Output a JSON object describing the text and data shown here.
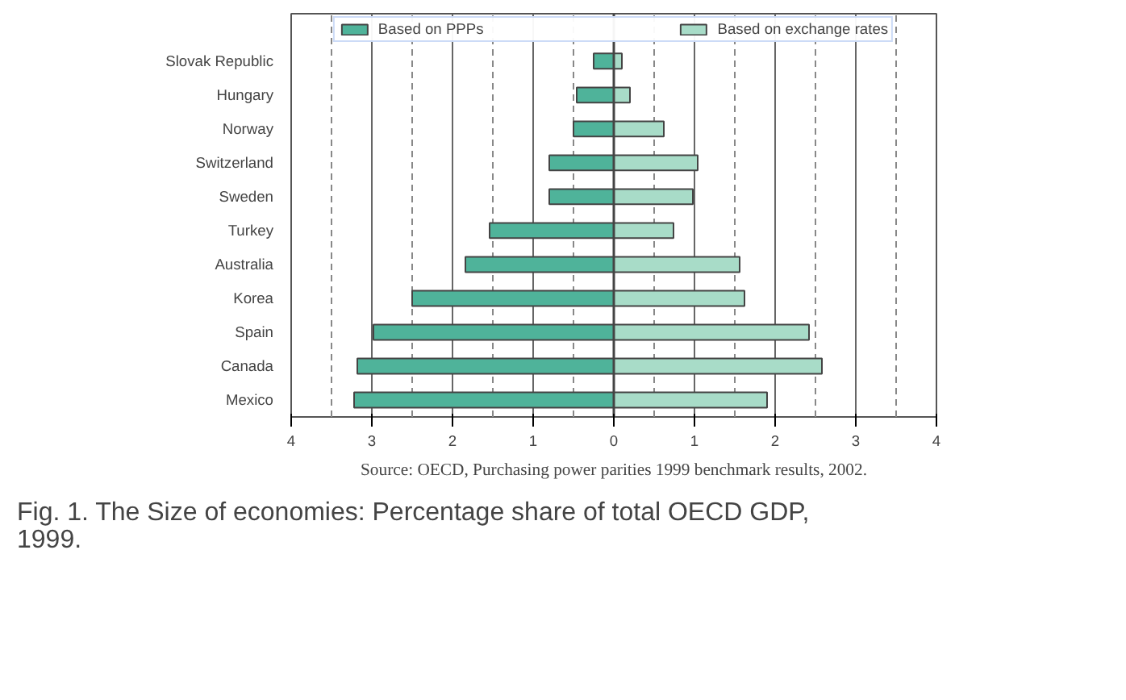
{
  "chart_data": {
    "type": "bar",
    "orientation": "horizontal",
    "title": "Fig. 1. The Size of economies: Percentage share of total OECD GDP, 1999.",
    "categories": [
      "Slovak Republic",
      "Hungary",
      "Norway",
      "Switzerland",
      "Sweden",
      "Turkey",
      "Australia",
      "Korea",
      "Spain",
      "Canada",
      "Mexico"
    ],
    "series": [
      {
        "name": "Based on PPPs",
        "color": "#4fb39a",
        "values": [
          -0.25,
          -0.46,
          -0.5,
          -0.8,
          -0.8,
          -1.54,
          -1.84,
          -2.5,
          -2.98,
          -3.18,
          -3.22
        ]
      },
      {
        "name": "Based on exchange rates",
        "color": "#a8dcc8",
        "values": [
          0.1,
          0.2,
          0.62,
          1.04,
          0.98,
          0.74,
          1.56,
          1.62,
          2.42,
          2.58,
          1.9
        ]
      }
    ],
    "xlim": [
      -4,
      4
    ],
    "xticks": [
      {
        "value": -4,
        "label": "4"
      },
      {
        "value": -3.5,
        "label": null
      },
      {
        "value": -3,
        "label": "3"
      },
      {
        "value": -2.5,
        "label": null
      },
      {
        "value": -2,
        "label": "2"
      },
      {
        "value": -1.5,
        "label": null
      },
      {
        "value": -1,
        "label": "1"
      },
      {
        "value": -0.5,
        "label": null
      },
      0,
      {
        "value": 0.5,
        "label": null
      },
      1,
      {
        "value": 1.5,
        "label": null
      },
      2,
      {
        "value": 2.5,
        "label": null
      },
      3,
      {
        "value": 3.5,
        "label": null
      },
      4
    ],
    "grid": "x",
    "legend": "top",
    "stacked": true,
    "annotations": [
      "Source: OECD, Purchasing power parities 1999 benchmark results, 2002."
    ]
  }
}
